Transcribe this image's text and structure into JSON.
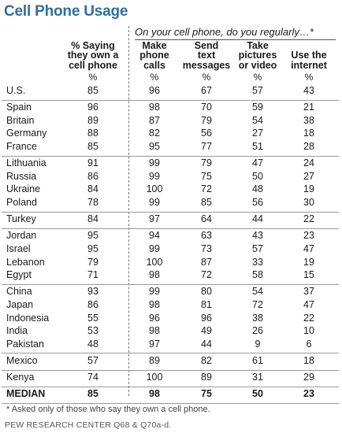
{
  "title": "Cell Phone Usage",
  "question": "On your cell phone, do you regularly…*",
  "chart_data": {
    "type": "table",
    "columns": [
      {
        "key": "own",
        "label": "% Saying\nthey own a\ncell phone"
      },
      {
        "key": "calls",
        "label": "Make\nphone\ncalls"
      },
      {
        "key": "text",
        "label": "Send\ntext\nmessages"
      },
      {
        "key": "pics",
        "label": "Take\npictures\nor video"
      },
      {
        "key": "internet",
        "label": "Use the\ninternet"
      }
    ],
    "unit_label": "%",
    "groups": [
      [
        {
          "country": "U.S.",
          "values": [
            85,
            96,
            67,
            57,
            43
          ]
        }
      ],
      [
        {
          "country": "Spain",
          "values": [
            96,
            98,
            70,
            59,
            21
          ]
        },
        {
          "country": "Britain",
          "values": [
            89,
            87,
            79,
            54,
            38
          ]
        },
        {
          "country": "Germany",
          "values": [
            88,
            82,
            56,
            27,
            18
          ]
        },
        {
          "country": "France",
          "values": [
            85,
            95,
            77,
            51,
            28
          ]
        }
      ],
      [
        {
          "country": "Lithuania",
          "values": [
            91,
            99,
            79,
            47,
            24
          ]
        },
        {
          "country": "Russia",
          "values": [
            86,
            99,
            75,
            50,
            27
          ]
        },
        {
          "country": "Ukraine",
          "values": [
            84,
            100,
            72,
            48,
            19
          ]
        },
        {
          "country": "Poland",
          "values": [
            78,
            99,
            85,
            56,
            30
          ]
        }
      ],
      [
        {
          "country": "Turkey",
          "values": [
            84,
            97,
            64,
            44,
            22
          ]
        }
      ],
      [
        {
          "country": "Jordan",
          "values": [
            95,
            94,
            63,
            43,
            23
          ]
        },
        {
          "country": "Israel",
          "values": [
            95,
            99,
            73,
            57,
            47
          ]
        },
        {
          "country": "Lebanon",
          "values": [
            79,
            100,
            87,
            33,
            19
          ]
        },
        {
          "country": "Egypt",
          "values": [
            71,
            98,
            72,
            58,
            15
          ]
        }
      ],
      [
        {
          "country": "China",
          "values": [
            93,
            99,
            80,
            54,
            37
          ]
        },
        {
          "country": "Japan",
          "values": [
            86,
            98,
            81,
            72,
            47
          ]
        },
        {
          "country": "Indonesia",
          "values": [
            55,
            96,
            96,
            38,
            22
          ]
        },
        {
          "country": "India",
          "values": [
            53,
            98,
            49,
            26,
            10
          ]
        },
        {
          "country": "Pakistan",
          "values": [
            48,
            97,
            44,
            9,
            6
          ]
        }
      ],
      [
        {
          "country": "Mexico",
          "values": [
            57,
            89,
            82,
            61,
            18
          ]
        }
      ],
      [
        {
          "country": "Kenya",
          "values": [
            74,
            100,
            89,
            31,
            29
          ]
        }
      ]
    ],
    "median": {
      "label": "MEDIAN",
      "values": [
        85,
        98,
        75,
        50,
        23
      ]
    }
  },
  "footnote": "* Asked only of those who say they own a cell phone.",
  "source": "PEW RESEARCH CENTER Q68 & Q70a-d."
}
